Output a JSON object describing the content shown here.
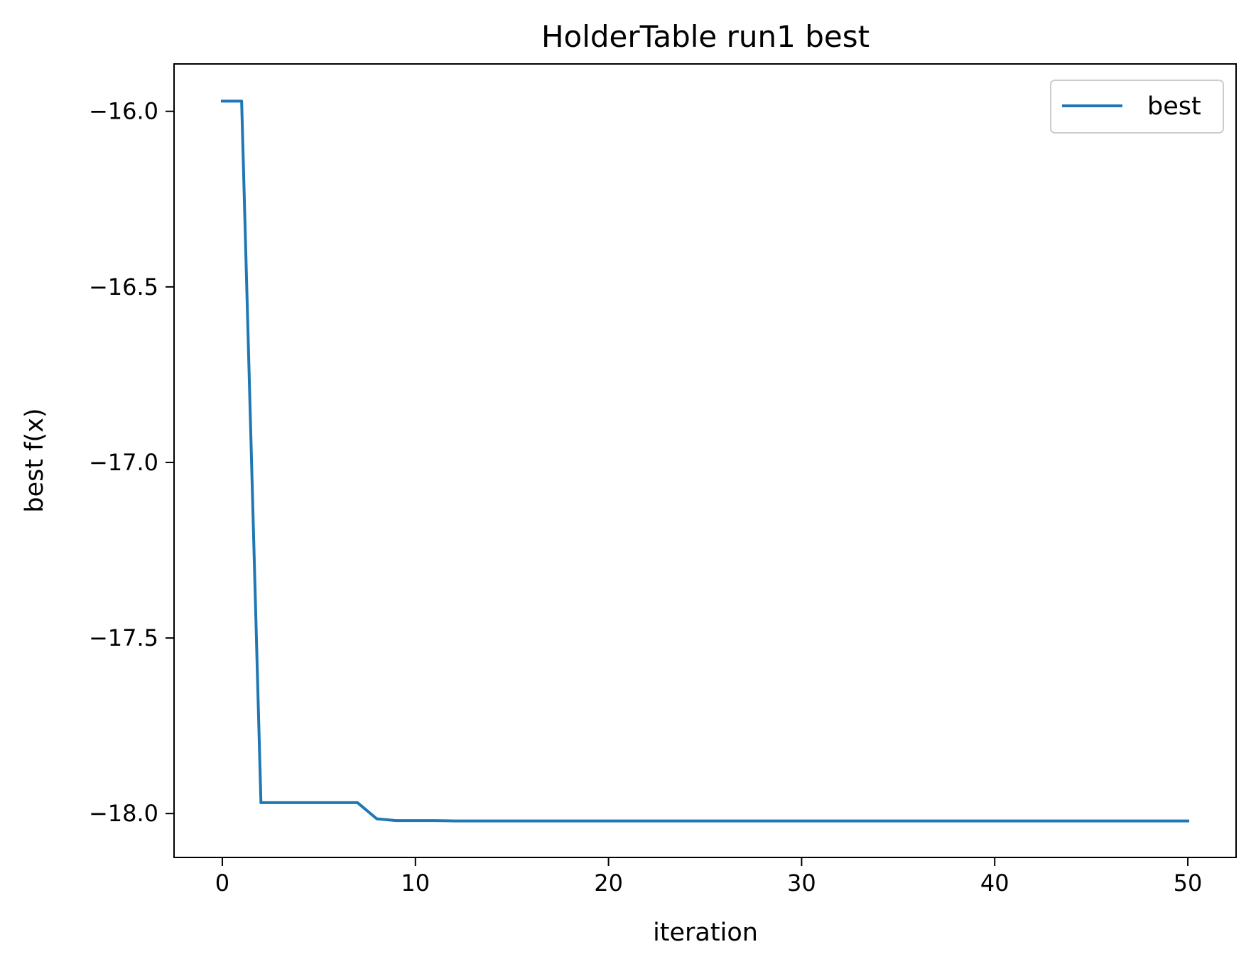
{
  "chart_data": {
    "type": "line",
    "title": "HolderTable run1 best",
    "xlabel": "iteration",
    "ylabel": "best f(x)",
    "xlim": [
      -2.5,
      52.5
    ],
    "ylim": [
      -18.125,
      -15.865
    ],
    "xticks": [
      0,
      10,
      20,
      30,
      40,
      50
    ],
    "xtick_labels": [
      "0",
      "10",
      "20",
      "30",
      "40",
      "50"
    ],
    "yticks": [
      -16.0,
      -16.5,
      -17.0,
      -17.5,
      -18.0
    ],
    "ytick_labels": [
      "−16.0",
      "−16.5",
      "−17.0",
      "−17.5",
      "−18.0"
    ],
    "grid": false,
    "legend_position": "top-right",
    "series": [
      {
        "name": "best",
        "color": "#1f77b4",
        "x": [
          0,
          1,
          2,
          3,
          4,
          5,
          6,
          7,
          8,
          9,
          10,
          11,
          12,
          13,
          14,
          15,
          16,
          17,
          18,
          19,
          20,
          21,
          22,
          23,
          24,
          25,
          26,
          27,
          28,
          29,
          30,
          31,
          32,
          33,
          34,
          35,
          36,
          37,
          38,
          39,
          40,
          41,
          42,
          43,
          44,
          45,
          46,
          47,
          48,
          49,
          50
        ],
        "y": [
          -15.971,
          -15.971,
          -17.969,
          -17.969,
          -17.969,
          -17.969,
          -17.969,
          -17.969,
          -18.015,
          -18.02,
          -18.02,
          -18.02,
          -18.021,
          -18.021,
          -18.021,
          -18.021,
          -18.021,
          -18.021,
          -18.021,
          -18.021,
          -18.021,
          -18.021,
          -18.021,
          -18.021,
          -18.021,
          -18.021,
          -18.021,
          -18.021,
          -18.021,
          -18.021,
          -18.021,
          -18.021,
          -18.021,
          -18.021,
          -18.021,
          -18.021,
          -18.021,
          -18.021,
          -18.021,
          -18.021,
          -18.021,
          -18.021,
          -18.021,
          -18.021,
          -18.021,
          -18.021,
          -18.021,
          -18.021,
          -18.021,
          -18.021,
          -18.021
        ]
      }
    ]
  }
}
